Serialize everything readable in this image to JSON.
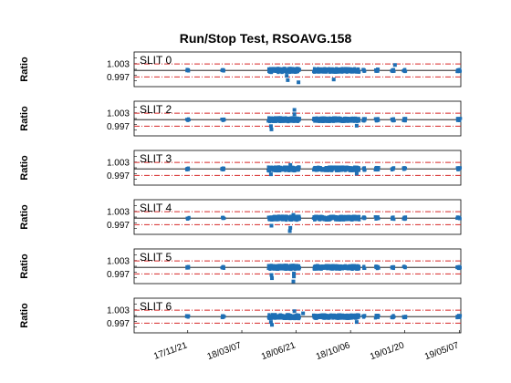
{
  "chart_data": {
    "type": "scatter",
    "title": "Run/Stop Test, RSOAVG.158",
    "ylabel": "Ratio",
    "ytick_labels": [
      "1.003",
      "0.997"
    ],
    "ylim": [
      0.9925,
      1.0085
    ],
    "threshold_lines": [
      1.003,
      0.997
    ],
    "reference_line": 1.0,
    "x_tick_labels": [
      "17/11/21",
      "18/03/07",
      "18/06/21",
      "18/10/06",
      "19/01/20",
      "19/05/07"
    ],
    "x_ticks": [
      "2017-11-21",
      "2018-03-07",
      "2018-06-21",
      "2018-10-06",
      "2019-01-20",
      "2019-05-07"
    ],
    "xlim": [
      "2017-08-08",
      "2019-05-10"
    ],
    "series_color": "#1f6fb4",
    "threshold_color": "#d62728",
    "panels": [
      {
        "label": "SLIT 0",
        "outliers": [
          {
            "date": "2018-06-05",
            "value": 0.9955
          },
          {
            "date": "2018-06-26",
            "value": 0.9945
          },
          {
            "date": "2018-09-03",
            "value": 0.9958
          },
          {
            "date": "2018-06-03",
            "value": 0.9975
          },
          {
            "date": "2019-01-01",
            "value": 1.0025
          }
        ]
      },
      {
        "label": "SLIT 2",
        "outliers": [
          {
            "date": "2018-05-03",
            "value": 0.997
          },
          {
            "date": "2018-05-04",
            "value": 0.9955
          },
          {
            "date": "2018-06-18",
            "value": 1.0045
          },
          {
            "date": "2018-06-18",
            "value": 1.0025
          },
          {
            "date": "2018-10-18",
            "value": 0.9972
          }
        ]
      },
      {
        "label": "SLIT 3",
        "outliers": [
          {
            "date": "2018-05-03",
            "value": 0.9975
          },
          {
            "date": "2018-06-10",
            "value": 1.0018
          },
          {
            "date": "2018-10-18",
            "value": 0.9978
          }
        ]
      },
      {
        "label": "SLIT 4",
        "outliers": [
          {
            "date": "2018-05-04",
            "value": 0.9965
          },
          {
            "date": "2018-06-10",
            "value": 0.9955
          },
          {
            "date": "2018-06-09",
            "value": 0.994
          },
          {
            "date": "2018-06-16",
            "value": 1.0015
          }
        ]
      },
      {
        "label": "SLIT 5",
        "outliers": [
          {
            "date": "2018-05-04",
            "value": 0.9965
          },
          {
            "date": "2018-05-05",
            "value": 0.995
          },
          {
            "date": "2018-06-17",
            "value": 0.9972
          },
          {
            "date": "2018-06-17",
            "value": 0.9958
          },
          {
            "date": "2018-06-16",
            "value": 0.9935
          }
        ]
      },
      {
        "label": "SLIT 6",
        "outliers": [
          {
            "date": "2018-05-03",
            "value": 0.9975
          },
          {
            "date": "2018-05-05",
            "value": 0.9962
          },
          {
            "date": "2018-06-18",
            "value": 1.0025
          },
          {
            "date": "2018-07-05",
            "value": 1.0015
          },
          {
            "date": "2018-10-18",
            "value": 0.9975
          }
        ]
      }
    ],
    "clusters": [
      {
        "start": "2017-11-19",
        "end": "2017-11-23",
        "value": 1.0,
        "spread": 0.0005
      },
      {
        "start": "2018-01-27",
        "end": "2018-01-31",
        "value": 1.0,
        "spread": 0.0005
      },
      {
        "start": "2018-04-28",
        "end": "2018-06-28",
        "value": 1.0,
        "spread": 0.001
      },
      {
        "start": "2018-07-26",
        "end": "2018-10-23",
        "value": 1.0,
        "spread": 0.0009
      },
      {
        "start": "2018-10-31",
        "end": "2018-11-03",
        "value": 1.0,
        "spread": 0.0007
      },
      {
        "start": "2018-11-24",
        "end": "2018-11-30",
        "value": 1.0,
        "spread": 0.0007
      },
      {
        "start": "2018-12-26",
        "end": "2018-12-30",
        "value": 1.0,
        "spread": 0.0006
      },
      {
        "start": "2019-01-18",
        "end": "2019-01-22",
        "value": 1.0,
        "spread": 0.0006
      },
      {
        "start": "2019-05-03",
        "end": "2019-05-09",
        "value": 1.0,
        "spread": 0.0006
      }
    ]
  }
}
